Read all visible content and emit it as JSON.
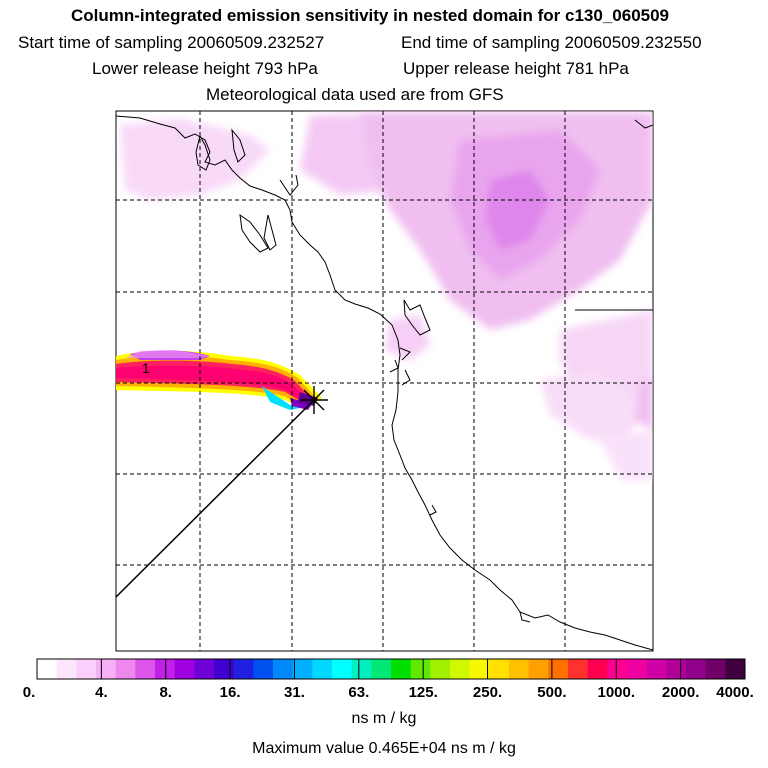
{
  "header": {
    "title": "Column-integrated emission sensitivity in nested domain for c130_060509",
    "start_time": "Start time of sampling 20060509.232527",
    "end_time": "End time of sampling 20060509.232550",
    "lower_release": "Lower release height  793 hPa",
    "upper_release": "Upper release height  781 hPa",
    "met_data": "Meteorological data used are from GFS"
  },
  "map": {
    "point_label": "1",
    "release_marker": "star-icon"
  },
  "colorbar": {
    "segment_colors": [
      "#ffffff",
      "#fde6fd",
      "#fbcefb",
      "#f6b0f6",
      "#ee88ee",
      "#dd55e8",
      "#c020e8",
      "#a000e0",
      "#7000d8",
      "#4000d0",
      "#2020e0",
      "#0050f0",
      "#0088f8",
      "#00b0ff",
      "#00d8ff",
      "#00ffff",
      "#00f0c0",
      "#00e878",
      "#00e000",
      "#60e800",
      "#a0f000",
      "#d0f800",
      "#f8f800",
      "#ffe000",
      "#ffc000",
      "#ffa000",
      "#ff7000",
      "#ff3030",
      "#ff0050",
      "#ff0090",
      "#f000a0",
      "#d000a8",
      "#b00098",
      "#900088",
      "#700068",
      "#400040"
    ],
    "tick_labels": [
      "0.",
      "4.",
      "8.",
      "16.",
      "31.",
      "63.",
      "125.",
      "250.",
      "500.",
      "1000.",
      "2000.",
      "4000."
    ],
    "unit": "ns m / kg",
    "max_value": "Maximum value  0.465E+04 ns m / kg"
  }
}
